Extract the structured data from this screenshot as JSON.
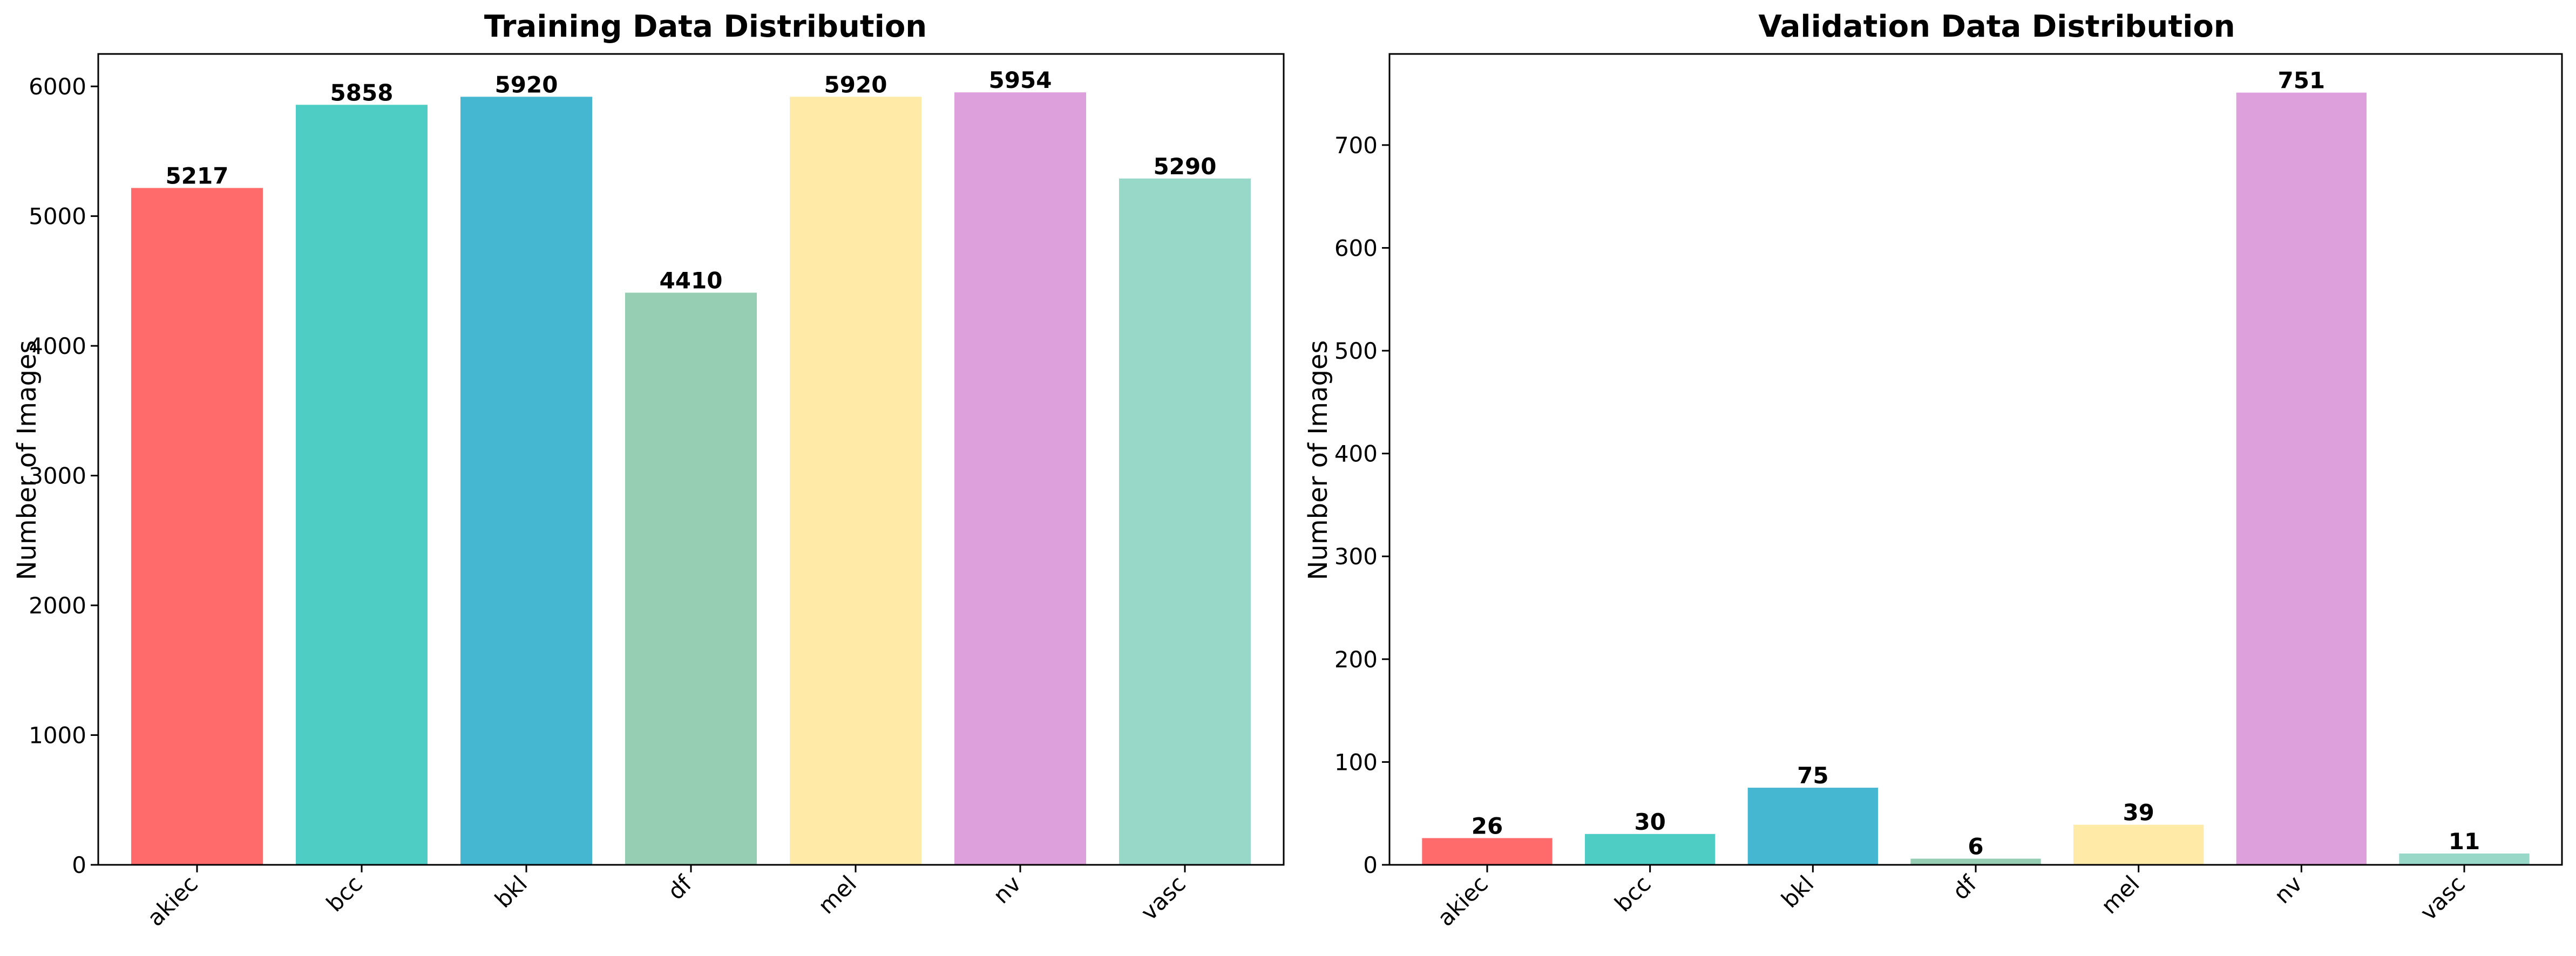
{
  "chart_data": [
    {
      "type": "bar",
      "title": "Training Data Distribution",
      "xlabel": "",
      "ylabel": "Number of Images",
      "categories": [
        "akiec",
        "bcc",
        "bkl",
        "df",
        "mel",
        "nv",
        "vasc"
      ],
      "values": [
        5217,
        5858,
        5920,
        4410,
        5920,
        5954,
        5290
      ],
      "data_labels": [
        "5217",
        "5858",
        "5920",
        "4410",
        "5920",
        "5954",
        "5290"
      ],
      "colors": [
        "#FF6B6B",
        "#4ECDC4",
        "#45B7D1",
        "#96CEB4",
        "#FFEAA7",
        "#DDA0DD",
        "#98D8C8"
      ],
      "ylim": [
        0,
        6250
      ],
      "yticks": [
        0,
        1000,
        2000,
        3000,
        4000,
        5000,
        6000
      ],
      "ytick_labels": [
        "0",
        "1000",
        "2000",
        "3000",
        "4000",
        "5000",
        "6000"
      ],
      "grid": false,
      "legend": "none"
    },
    {
      "type": "bar",
      "title": "Validation Data Distribution",
      "xlabel": "",
      "ylabel": "Number of Images",
      "categories": [
        "akiec",
        "bcc",
        "bkl",
        "df",
        "mel",
        "nv",
        "vasc"
      ],
      "values": [
        26,
        30,
        75,
        6,
        39,
        751,
        11
      ],
      "data_labels": [
        "26",
        "30",
        "75",
        "6",
        "39",
        "751",
        "11"
      ],
      "colors": [
        "#FF6B6B",
        "#4ECDC4",
        "#45B7D1",
        "#96CEB4",
        "#FFEAA7",
        "#DDA0DD",
        "#98D8C8"
      ],
      "ylim": [
        0,
        788.6
      ],
      "yticks": [
        0,
        100,
        200,
        300,
        400,
        500,
        600,
        700
      ],
      "ytick_labels": [
        "0",
        "100",
        "200",
        "300",
        "400",
        "500",
        "600",
        "700"
      ],
      "grid": false,
      "legend": "none"
    }
  ]
}
